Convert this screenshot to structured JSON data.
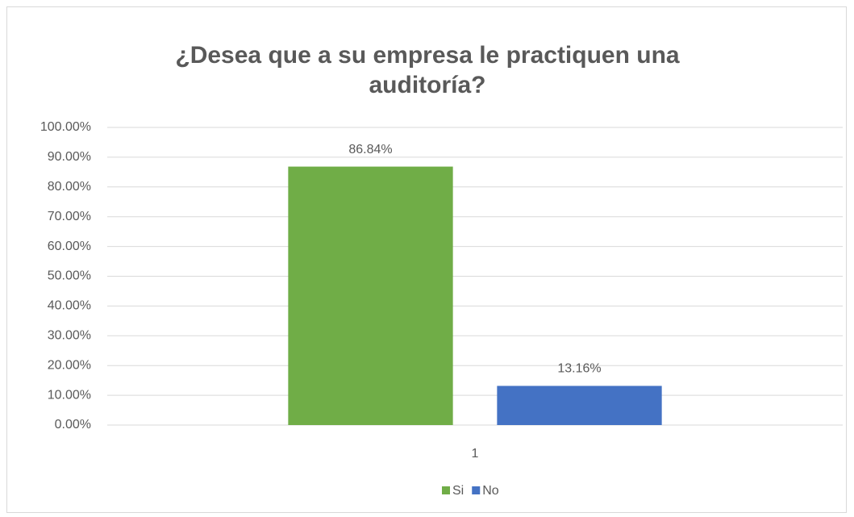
{
  "chart_data": {
    "type": "bar",
    "title": "¿Desea que a su empresa le practiquen una auditoría?",
    "categories": [
      "1"
    ],
    "series": [
      {
        "name": "Si",
        "color": "#70ad47",
        "values": [
          86.84
        ],
        "value_labels": [
          "86.84%"
        ]
      },
      {
        "name": "No",
        "color": "#4472c4",
        "values": [
          13.16
        ],
        "value_labels": [
          "13.16%"
        ]
      }
    ],
    "ylim": [
      0,
      100
    ],
    "yticks": [
      {
        "value": 0,
        "label": "0.00%"
      },
      {
        "value": 10,
        "label": "10.00%"
      },
      {
        "value": 20,
        "label": "20.00%"
      },
      {
        "value": 30,
        "label": "30.00%"
      },
      {
        "value": 40,
        "label": "40.00%"
      },
      {
        "value": 50,
        "label": "50.00%"
      },
      {
        "value": 60,
        "label": "60.00%"
      },
      {
        "value": 70,
        "label": "70.00%"
      },
      {
        "value": 80,
        "label": "80.00%"
      },
      {
        "value": 90,
        "label": "90.00%"
      },
      {
        "value": 100,
        "label": "100.00%"
      }
    ],
    "grid": true,
    "legend": "bottom"
  }
}
